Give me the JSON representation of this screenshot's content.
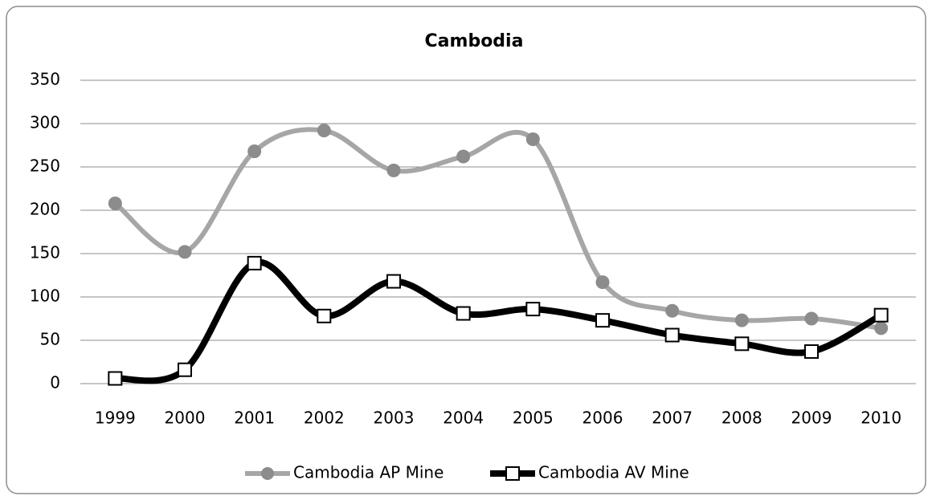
{
  "chart_data": {
    "type": "line",
    "title": "Cambodia",
    "categories": [
      "1999",
      "2000",
      "2001",
      "2002",
      "2003",
      "2004",
      "2005",
      "2006",
      "2007",
      "2008",
      "2009",
      "2010"
    ],
    "series": [
      {
        "name": "Cambodia AP Mine",
        "color": "#a6a6a6",
        "marker": "circle",
        "values": [
          208,
          152,
          268,
          292,
          246,
          262,
          282,
          117,
          84,
          73,
          75,
          64
        ]
      },
      {
        "name": "Cambodia AV Mine",
        "color": "#000000",
        "marker": "square",
        "values": [
          6,
          16,
          139,
          78,
          118,
          81,
          86,
          73,
          56,
          46,
          37,
          79
        ]
      }
    ],
    "ylim": [
      0,
      350
    ],
    "yticks": [
      0,
      50,
      100,
      150,
      200,
      250,
      300,
      350
    ],
    "grid": true,
    "legend": "bottom"
  }
}
